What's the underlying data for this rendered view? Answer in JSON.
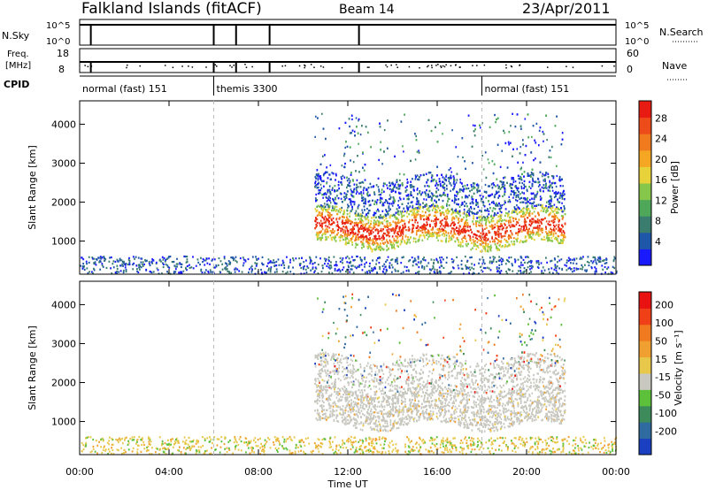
{
  "header": {
    "title": "Falkland Islands (fitACF)",
    "beam": "Beam 14",
    "date": "23/Apr/2011"
  },
  "status_panels": {
    "nsky": {
      "label": "N.Sky",
      "ticks": [
        "10^5",
        "10^0"
      ],
      "right_ticks": [
        "10^5",
        "10^0"
      ],
      "right_label": "N.Search",
      "spike_hours": [
        0.5,
        6.0,
        7.0,
        8.5,
        12.5
      ]
    },
    "freq": {
      "label_line1": "Freq.",
      "label_line2": "[MHz]",
      "ticks": [
        "18",
        "8"
      ],
      "right_ticks": [
        "60",
        "0"
      ],
      "right_label": "Nave",
      "spike_hours": [
        0.5,
        6.0,
        7.0,
        8.5,
        12.5
      ]
    },
    "cpid": {
      "label": "CPID",
      "segments": [
        {
          "start_hour": 0.0,
          "label": "normal (fast) 151"
        },
        {
          "start_hour": 6.0,
          "label": "themis 3300"
        },
        {
          "start_hour": 18.0,
          "label": "normal (fast) 151"
        }
      ]
    }
  },
  "chart_data": [
    {
      "type": "heatmap",
      "name": "power",
      "xlabel": "",
      "ylabel": "Slant Range [km]",
      "xlim": [
        0,
        24
      ],
      "ylim": [
        150,
        4600
      ],
      "yticks": [
        1000,
        2000,
        3000,
        4000
      ],
      "colorbar": {
        "label": "Power [dB]",
        "tick_labels": [
          "4",
          "8",
          "12",
          "16",
          "20",
          "24",
          "28"
        ],
        "colors": [
          "#1a1aff",
          "#1f57a8",
          "#3a7d6e",
          "#4fa85a",
          "#86c64a",
          "#e8d23a",
          "#f5a623",
          "#f07a1e",
          "#ee4b1b",
          "#e81b12"
        ]
      }
    },
    {
      "type": "heatmap",
      "name": "velocity",
      "xlabel": "Time UT",
      "ylabel": "Slant Range [km]",
      "xlim": [
        0,
        24
      ],
      "ylim": [
        150,
        4600
      ],
      "yticks": [
        1000,
        2000,
        3000,
        4000
      ],
      "xticks": [
        "00:00",
        "04:00",
        "08:00",
        "12:00",
        "16:00",
        "20:00",
        "00:00"
      ],
      "colorbar": {
        "label": "Velocity [m s⁻¹]",
        "tick_labels": [
          "200",
          "100",
          "50",
          "15",
          "-15",
          "-50",
          "-100",
          "-200"
        ],
        "colors": [
          "#1a3fc0",
          "#2f6aa0",
          "#3d8a5a",
          "#5cc03a",
          "#c8c8c0",
          "#e8c84a",
          "#f0a030",
          "#f07a20",
          "#f04018",
          "#e81212"
        ]
      }
    }
  ],
  "dashed_marker_hours": [
    6.0,
    18.0
  ]
}
